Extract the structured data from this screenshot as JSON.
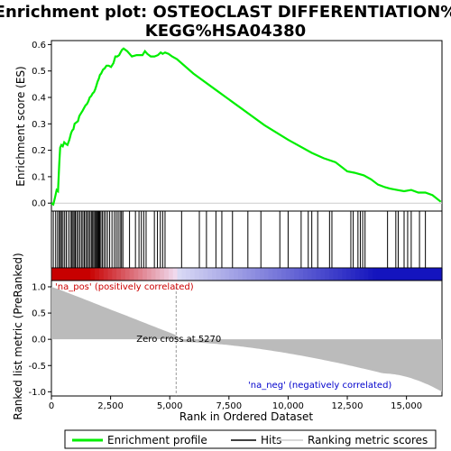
{
  "chart_data": {
    "type": "line",
    "title_line1": "Enrichment plot: OSTEOCLAST DIFFERENTIATION%",
    "title_line2": "KEGG%HSA04380",
    "xlabel": "Rank in Ordered Dataset",
    "ylabel_top": "Enrichment score (ES)",
    "ylabel_bottom": "Ranked list metric (PreRanked)",
    "xlim": [
      0,
      16500
    ],
    "x_ticks": [
      "0",
      "2,500",
      "5,000",
      "7,500",
      "10,000",
      "12,500",
      "15,000"
    ],
    "x_tick_values": [
      0,
      2500,
      5000,
      7500,
      10000,
      12500,
      15000
    ],
    "es_ylim": [
      -0.03,
      0.615
    ],
    "es_ticks": [
      "0.0",
      "0.1",
      "0.2",
      "0.3",
      "0.4",
      "0.5",
      "0.6"
    ],
    "es_tick_values": [
      0.0,
      0.1,
      0.2,
      0.3,
      0.4,
      0.5,
      0.6
    ],
    "metric_ylim": [
      -1.08,
      1.12
    ],
    "metric_ticks": [
      "1.0",
      "0.5",
      "0.0",
      "-0.5",
      "-1.0"
    ],
    "metric_tick_values": [
      1.0,
      0.5,
      0.0,
      -0.5,
      -1.0
    ],
    "es_series": {
      "name": "Enrichment profile",
      "x": [
        0,
        80,
        150,
        220,
        280,
        330,
        370,
        420,
        480,
        540,
        600,
        680,
        760,
        830,
        880,
        930,
        980,
        1050,
        1120,
        1180,
        1250,
        1320,
        1380,
        1440,
        1500,
        1560,
        1620,
        1680,
        1740,
        1800,
        1850,
        1900,
        1950,
        2000,
        2050,
        2100,
        2180,
        2250,
        2330,
        2420,
        2520,
        2620,
        2700,
        2780,
        2860,
        2920,
        2980,
        3050,
        3200,
        3400,
        3600,
        3750,
        3850,
        3950,
        4050,
        4200,
        4350,
        4500,
        4620,
        4700,
        4800,
        4950,
        5100,
        5300,
        6000,
        7000,
        8000,
        9000,
        10000,
        11000,
        11500,
        12000,
        12500,
        12800,
        13200,
        13500,
        13800,
        14100,
        14300,
        14600,
        14900,
        15200,
        15500,
        15800,
        16100,
        16450
      ],
      "values": [
        0.0,
        -0.005,
        0.02,
        0.05,
        0.045,
        0.15,
        0.21,
        0.22,
        0.215,
        0.23,
        0.225,
        0.22,
        0.24,
        0.265,
        0.275,
        0.28,
        0.3,
        0.305,
        0.31,
        0.33,
        0.34,
        0.35,
        0.36,
        0.37,
        0.375,
        0.385,
        0.4,
        0.405,
        0.415,
        0.42,
        0.43,
        0.445,
        0.46,
        0.47,
        0.485,
        0.49,
        0.505,
        0.51,
        0.52,
        0.52,
        0.515,
        0.53,
        0.555,
        0.555,
        0.56,
        0.57,
        0.58,
        0.585,
        0.575,
        0.555,
        0.56,
        0.56,
        0.56,
        0.575,
        0.565,
        0.555,
        0.555,
        0.56,
        0.57,
        0.565,
        0.57,
        0.565,
        0.555,
        0.545,
        0.49,
        0.425,
        0.36,
        0.295,
        0.24,
        0.19,
        0.17,
        0.155,
        0.12,
        0.115,
        0.105,
        0.09,
        0.07,
        0.06,
        0.055,
        0.05,
        0.045,
        0.05,
        0.04,
        0.04,
        0.03,
        0.005
      ]
    },
    "hits": [
      80,
      180,
      260,
      330,
      380,
      430,
      490,
      560,
      630,
      720,
      800,
      860,
      910,
      960,
      1010,
      1070,
      1130,
      1200,
      1270,
      1330,
      1390,
      1450,
      1510,
      1570,
      1630,
      1690,
      1740,
      1790,
      1840,
      1880,
      1920,
      1960,
      2000,
      2040,
      2090,
      2150,
      2220,
      2290,
      2370,
      2460,
      2560,
      2660,
      2740,
      2820,
      2900,
      2960,
      3020,
      3300,
      3550,
      3700,
      3800,
      3900,
      4000,
      4350,
      4480,
      4600,
      4700,
      4800,
      5500,
      6250,
      6550,
      6950,
      7200,
      7650,
      8300,
      8850,
      9650,
      10000,
      10550,
      10850,
      11000,
      11250,
      11750,
      11850,
      12650,
      12750,
      12950,
      13050,
      13150,
      13250,
      14200,
      14550,
      14650,
      14900,
      15050,
      15200,
      15550,
      15800
    ],
    "zero_cross": 5270,
    "zero_cross_label": "Zero cross at 5270",
    "pos_label": "'na_pos' (positively correlated)",
    "neg_label": "'na_neg' (negatively correlated)",
    "legend": {
      "items": [
        "Enrichment profile",
        "Hits",
        "Ranking metric scores"
      ]
    },
    "colors": {
      "es_line": "#00ee00",
      "hits": "#000000",
      "metric_fill": "#bbbbbb",
      "pos_label": "#cc0000",
      "neg_label": "#0000cc",
      "zero_line": "#999999"
    }
  }
}
